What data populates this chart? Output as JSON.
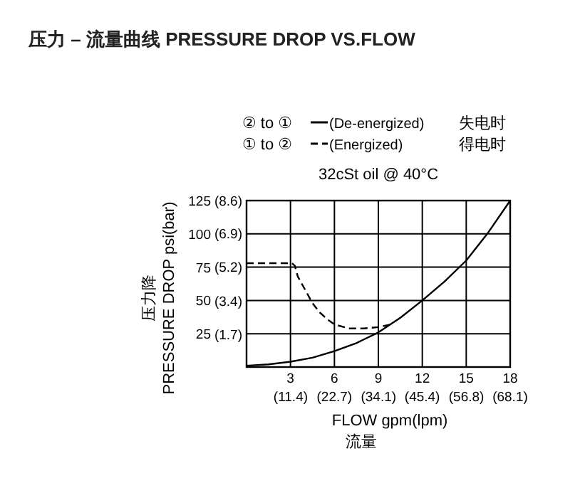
{
  "chart_data": {
    "type": "line",
    "title": "压力 – 流量曲线 PRESSURE DROP VS.FLOW",
    "xlabel": "FLOW gpm(lpm)\n流量",
    "ylabel": "压力降\nPRESSURE DROP psi(bar)",
    "annotations": [
      "② to ①",
      "① to ②",
      "失电时",
      "得电时",
      "32cSt oil @ 40°C"
    ],
    "xlim": [
      0,
      18
    ],
    "ylim": [
      0,
      125
    ],
    "xticks": [
      3,
      6,
      9,
      12,
      15,
      18
    ],
    "yticks": [
      25,
      50,
      75,
      100,
      125
    ],
    "x2lim": [
      0,
      68.1
    ],
    "x2ticks": [
      {
        "value": 11.4,
        "label": "(11.4)"
      },
      {
        "value": 22.7,
        "label": "(22.7)"
      },
      {
        "value": 34.1,
        "label": "(34.1)"
      },
      {
        "value": 45.4,
        "label": "(45.4)"
      },
      {
        "value": 56.8,
        "label": "(56.8)"
      },
      {
        "value": 68.1,
        "label": "(68.1)"
      }
    ],
    "y2lim": [
      0,
      8.6
    ],
    "y2ticks": [
      {
        "value": 1.7,
        "label": "(1.7)"
      },
      {
        "value": 3.4,
        "label": "(3.4)"
      },
      {
        "value": 5.2,
        "label": "(5.2)"
      },
      {
        "value": 6.9,
        "label": "(6.9)"
      },
      {
        "value": 8.6,
        "label": "(8.6)"
      }
    ],
    "grid": true,
    "legend": "top",
    "marker": "none",
    "series": [
      {
        "name": "(De-energized)",
        "color": "#000000",
        "line_style": "solid",
        "x": [
          0,
          1.5,
          3,
          4.5,
          6,
          7.5,
          9,
          10.5,
          12,
          13.5,
          15,
          16.5,
          18
        ],
        "values": [
          1,
          2,
          4,
          7,
          12,
          18,
          26,
          37,
          50,
          64,
          80,
          101,
          125
        ]
      },
      {
        "name": "(Energized)",
        "color": "#000000",
        "line_style": "dashed",
        "x": [
          0,
          3.1,
          3.3,
          3.5,
          4,
          4.5,
          5,
          5.5,
          6,
          7,
          8,
          9,
          9.9
        ],
        "values": [
          78,
          78,
          76,
          68,
          58,
          48,
          41,
          36,
          32,
          29,
          29,
          30,
          32
        ]
      }
    ]
  }
}
